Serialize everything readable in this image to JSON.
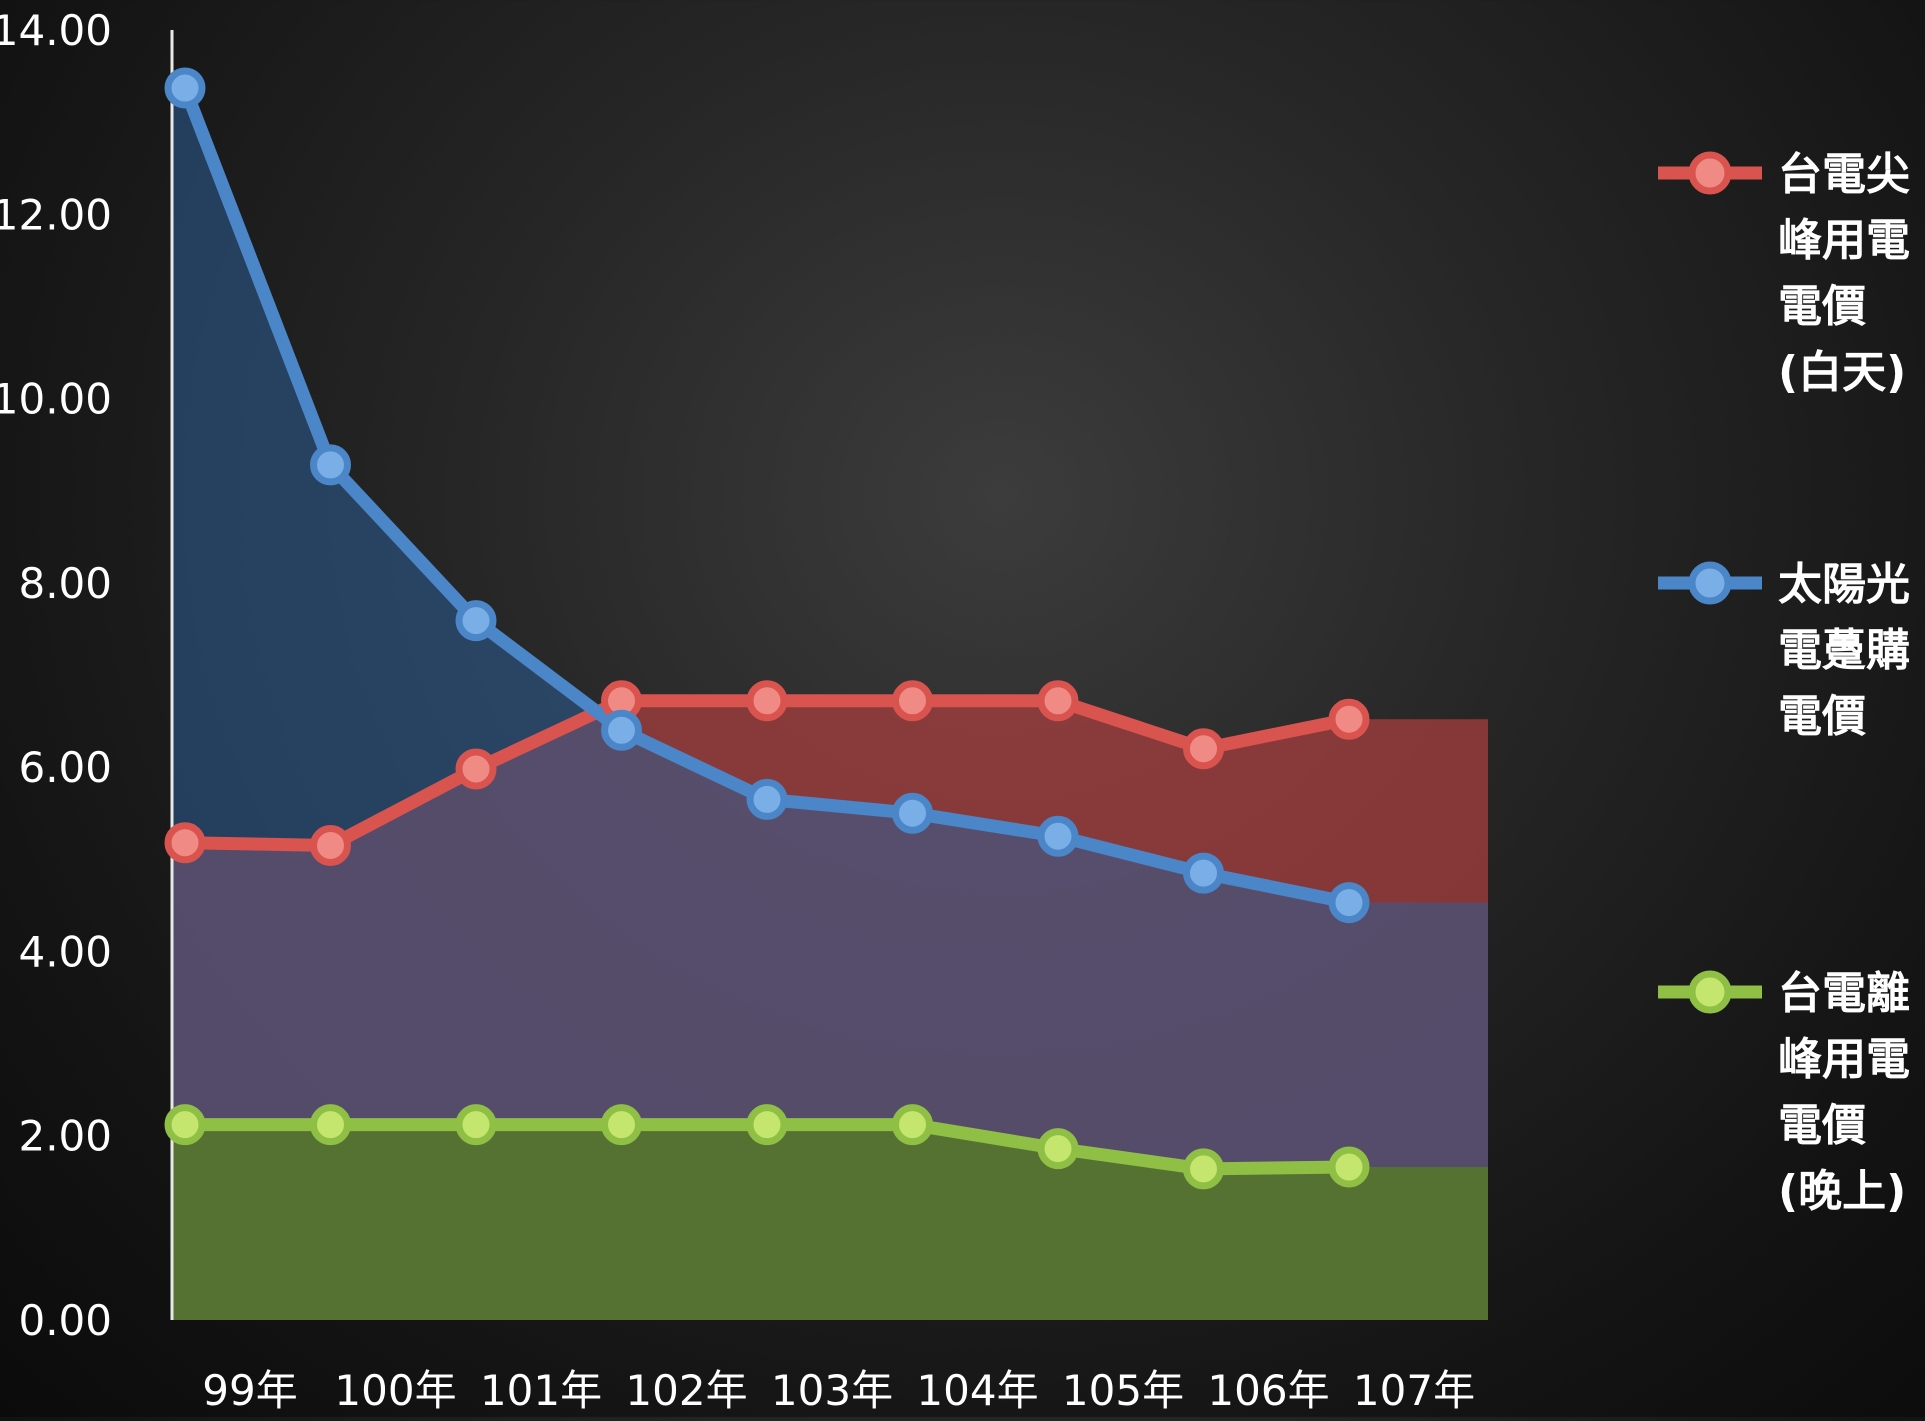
{
  "chart_data": {
    "type": "area",
    "title": "",
    "xlabel": "",
    "ylabel": "",
    "ylim": [
      0,
      14
    ],
    "yticks": [
      "0.00",
      "2.00",
      "4.00",
      "6.00",
      "8.00",
      "10.00",
      "12.00",
      "14.00"
    ],
    "categories": [
      "99年",
      "100年",
      "101年",
      "102年",
      "103年",
      "104年",
      "105年",
      "106年",
      "107年"
    ],
    "grid": false,
    "legend_position": "right",
    "series": [
      {
        "key": "peak",
        "name_lines": [
          "台電尖",
          "峰用電",
          "電價",
          "(白天)"
        ],
        "color": "#d9534f",
        "marker_color": "#f08a85",
        "fill": "#ac4040",
        "x": [
          0,
          1,
          2,
          3,
          4,
          5,
          6,
          7,
          8
        ],
        "values": [
          5.18,
          5.15,
          5.98,
          6.72,
          6.72,
          6.72,
          6.72,
          6.2,
          6.52
        ]
      },
      {
        "key": "solar",
        "name_lines": [
          "太陽光",
          "電躉購",
          "電價"
        ],
        "color": "#4a86c8",
        "marker_color": "#7aaee6",
        "fill": "#2e5e96",
        "x": [
          0,
          1,
          2,
          3,
          4,
          5,
          6,
          7,
          8
        ],
        "values": [
          13.37,
          9.28,
          7.59,
          6.4,
          5.65,
          5.5,
          5.25,
          4.85,
          4.53
        ]
      },
      {
        "key": "offpeak",
        "name_lines": [
          "台電離",
          "峰用電",
          "電價",
          "(晚上)"
        ],
        "color": "#8fbf45",
        "marker_color": "#c4e56e",
        "fill": "#55772e",
        "x": [
          0,
          1,
          2,
          3,
          4,
          5,
          6,
          7,
          8
        ],
        "values": [
          2.12,
          2.12,
          2.12,
          2.12,
          2.12,
          2.12,
          1.86,
          1.64,
          1.66
        ]
      }
    ]
  }
}
